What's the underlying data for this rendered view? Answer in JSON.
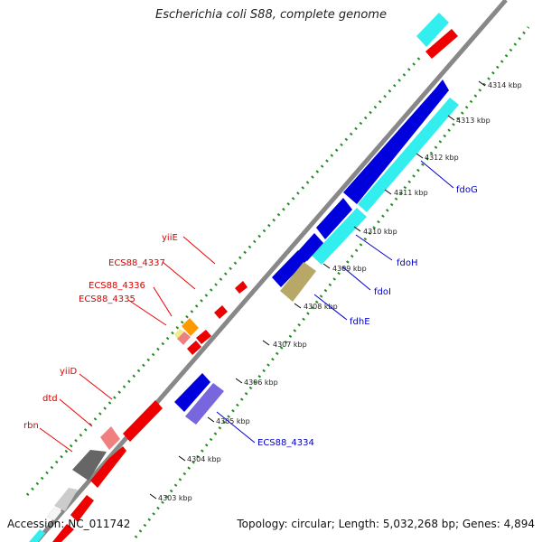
{
  "title": "Escherichia coli S88, complete genome",
  "accession": "Accession: NC_011742",
  "topology": "Topology: circular; Length: 5,032,268 bp; Genes: 4,894",
  "colors": {
    "forward_cds": "#ee0000",
    "reverse_cds": "#0000dd",
    "backbone": "#888888",
    "gc_dots": "#228b22",
    "cyan_feature": "#33eeee",
    "forward_label": "#dd0000",
    "reverse_label": "#0000cc"
  },
  "tick_labels": [
    "4314 kbp",
    "4313 kbp",
    "4312 kbp",
    "4311 kbp",
    "4310 kbp",
    "4309 kbp",
    "4308 kbp",
    "4307 kbp",
    "4306 kbp",
    "4305 kbp",
    "4304 kbp",
    "4303 kbp"
  ],
  "forward_gene_labels": [
    "yiiE",
    "ECS88_4337",
    "ECS88_4336",
    "ECS88_4335",
    "yiiD",
    "dtd",
    "rbn"
  ],
  "reverse_gene_labels": [
    "fdoG",
    "fdoH",
    "fdoI",
    "fdhE",
    "ECS88_4334"
  ]
}
